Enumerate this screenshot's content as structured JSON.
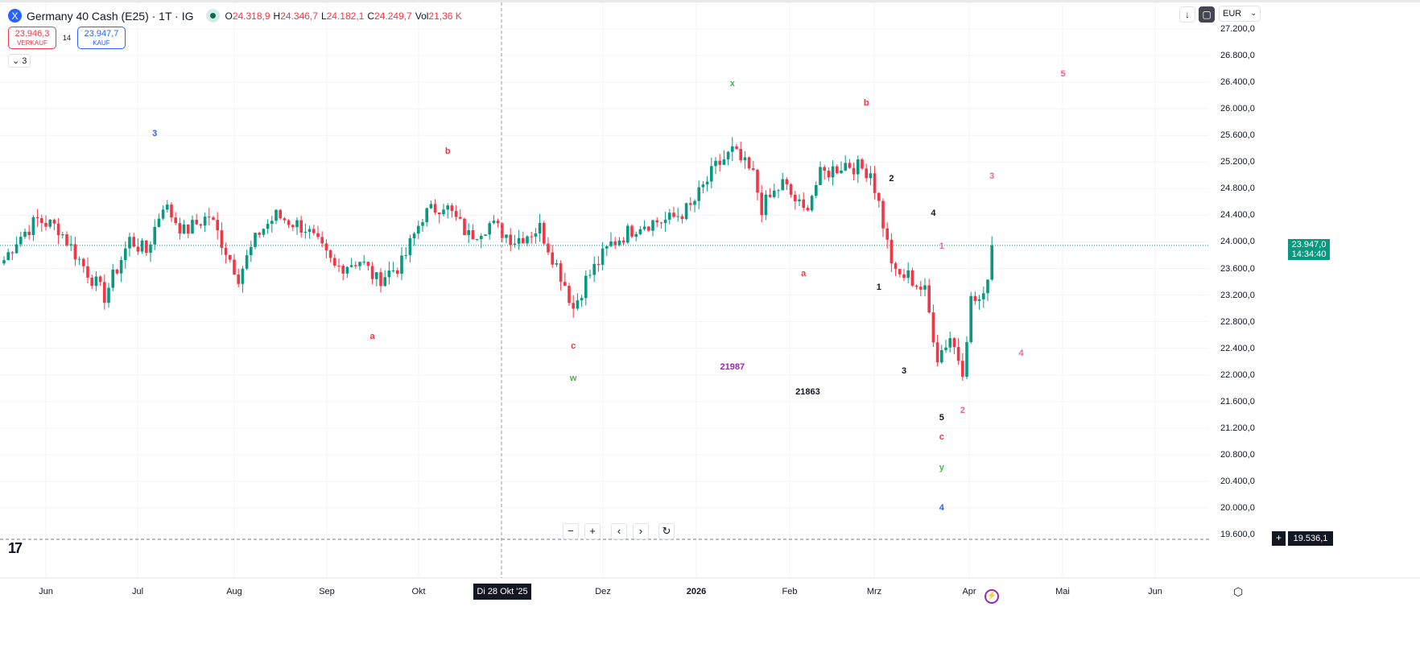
{
  "header": {
    "title": "Germany 40 Cash (E25) · 1T · IG",
    "logo": "X",
    "ohlc": [
      {
        "k": "O",
        "v": "24.318,9"
      },
      {
        "k": "H",
        "v": "24.346,7"
      },
      {
        "k": "L",
        "v": "24.182,1"
      },
      {
        "k": "C",
        "v": "24.249,7"
      },
      {
        "k": "Vol",
        "v": "21,36 K"
      }
    ]
  },
  "trade": {
    "sell_price": "23.946,3",
    "sell_label": "VERKAUF",
    "spread": "14",
    "buy_price": "23.947,7",
    "buy_label": "KAUF"
  },
  "indicators_collapse": "3",
  "currency": "EUR",
  "price_axis": [
    "27.200,0",
    "26.800,0",
    "26.400,0",
    "26.000,0",
    "25.600,0",
    "25.200,0",
    "24.800,0",
    "24.400,0",
    "24.000,0",
    "23.600,0",
    "23.200,0",
    "22.800,0",
    "22.400,0",
    "22.000,0",
    "21.600,0",
    "21.200,0",
    "20.800,0",
    "20.400,0",
    "20.000,0",
    "19.600,0"
  ],
  "current_price": {
    "value": "23.947,0",
    "countdown": "14:34:40"
  },
  "crosshair": {
    "price": "19.536,1",
    "date": "Di 28 Okt '25"
  },
  "time_axis": [
    "Jun",
    "Jul",
    "Aug",
    "Sep",
    "Okt",
    "Dez",
    "2026",
    "Feb",
    "Mrz",
    "Apr",
    "Mai",
    "Jun"
  ],
  "colors": {
    "up": "#089981",
    "down": "#f23645"
  },
  "chart_data": {
    "type": "candlestick",
    "price_range": [
      19400,
      27400
    ],
    "current": 23947,
    "crosshair_price": 19536,
    "close_waypoints": [
      [
        0,
        23728
      ],
      [
        3,
        24030
      ],
      [
        8,
        24333
      ],
      [
        13,
        24210
      ],
      [
        18,
        23728
      ],
      [
        24,
        23183
      ],
      [
        30,
        24030
      ],
      [
        34,
        23849
      ],
      [
        38,
        24575
      ],
      [
        43,
        24151
      ],
      [
        49,
        24393
      ],
      [
        56,
        23486
      ],
      [
        61,
        24151
      ],
      [
        65,
        24393
      ],
      [
        72,
        24210
      ],
      [
        79,
        23607
      ],
      [
        85,
        23728
      ],
      [
        89,
        23425
      ],
      [
        95,
        23667
      ],
      [
        100,
        24393
      ],
      [
        105,
        24575
      ],
      [
        111,
        24090
      ],
      [
        116,
        24272
      ],
      [
        122,
        24030
      ],
      [
        128,
        24210
      ],
      [
        134,
        23365
      ],
      [
        136,
        23002
      ],
      [
        139,
        23425
      ],
      [
        145,
        23970
      ],
      [
        152,
        24272
      ],
      [
        159,
        24333
      ],
      [
        164,
        24514
      ],
      [
        170,
        25119
      ],
      [
        174,
        25361
      ],
      [
        179,
        24998
      ],
      [
        181,
        24514
      ],
      [
        186,
        24877
      ],
      [
        191,
        24454
      ],
      [
        195,
        24998
      ],
      [
        201,
        25180
      ],
      [
        207,
        25059
      ],
      [
        209,
        24575
      ],
      [
        211,
        23970
      ],
      [
        213,
        23486
      ],
      [
        216,
        23486
      ],
      [
        220,
        23244
      ],
      [
        223,
        22276
      ],
      [
        226,
        22578
      ],
      [
        229,
        22094
      ],
      [
        231,
        23123
      ],
      [
        234,
        23123
      ],
      [
        236,
        23947
      ]
    ],
    "wave_labels": [
      {
        "t": "3",
        "bar": 36,
        "p": 25627,
        "c": "#2962ff"
      },
      {
        "t": "b",
        "bar": 106,
        "p": 25361,
        "c": "#f23645"
      },
      {
        "t": "a",
        "bar": 88,
        "p": 22578,
        "c": "#f23645"
      },
      {
        "t": "c",
        "bar": 136,
        "p": 22433,
        "c": "#f23645"
      },
      {
        "t": "w",
        "bar": 136,
        "p": 21949,
        "c": "#4caf50"
      },
      {
        "t": "x",
        "bar": 174,
        "p": 26377,
        "c": "#4caf50"
      },
      {
        "t": "21987",
        "bar": 174,
        "p": 22118,
        "c": "#9c27b0"
      },
      {
        "t": "21863",
        "bar": 192,
        "p": 21743,
        "c": "#131722"
      },
      {
        "t": "a",
        "bar": 191,
        "p": 23522,
        "c": "#f23645"
      },
      {
        "t": "b",
        "bar": 206,
        "p": 26087,
        "c": "#f23645"
      },
      {
        "t": "2",
        "bar": 212,
        "p": 24950,
        "c": "#131722"
      },
      {
        "t": "4",
        "bar": 222,
        "p": 24430,
        "c": "#131722"
      },
      {
        "t": "1",
        "bar": 209,
        "p": 23316,
        "c": "#131722"
      },
      {
        "t": "3",
        "bar": 215,
        "p": 22058,
        "c": "#131722"
      },
      {
        "t": "5",
        "bar": 224,
        "p": 21356,
        "c": "#131722"
      },
      {
        "t": "c",
        "bar": 224,
        "p": 21066,
        "c": "#f23645"
      },
      {
        "t": "y",
        "bar": 224,
        "p": 20606,
        "c": "#4caf50"
      },
      {
        "t": "4",
        "bar": 224,
        "p": 20001,
        "c": "#2962ff"
      },
      {
        "t": "1",
        "bar": 224,
        "p": 23933,
        "c": "#f06292"
      },
      {
        "t": "3",
        "bar": 236,
        "p": 24986,
        "c": "#f06292"
      },
      {
        "t": "5",
        "bar": 253,
        "p": 26522,
        "c": "#f06292"
      },
      {
        "t": "4",
        "bar": 243,
        "p": 22324,
        "c": "#f06292"
      },
      {
        "t": "2",
        "bar": 229,
        "p": 21465,
        "c": "#f06292"
      }
    ]
  }
}
